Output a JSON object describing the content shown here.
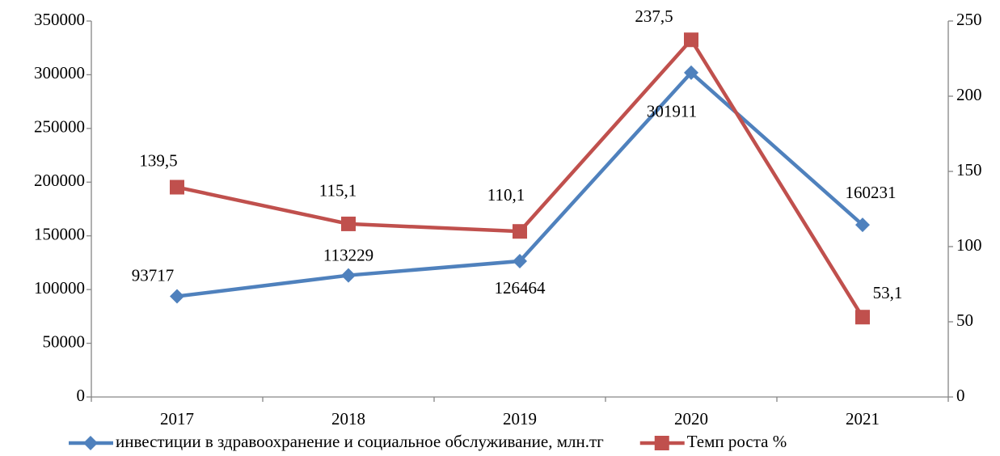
{
  "chart_data": {
    "type": "line",
    "categories": [
      "2017",
      "2018",
      "2019",
      "2020",
      "2021"
    ],
    "series": [
      {
        "name": "инвестиции в здравоохранение и социальное обслуживание, млн.тг",
        "color": "#4f81bd",
        "marker": "diamond",
        "values": [
          93717,
          113229,
          126464,
          301911,
          160231
        ]
      },
      {
        "name": "Темп роста %",
        "color": "#c0504d",
        "marker": "square",
        "axis": "y2",
        "values": [
          139.5,
          115.1,
          110.1,
          237.5,
          53.1
        ],
        "value_labels": [
          "139,5",
          "115,1",
          "110,1",
          "237,5",
          "53,1"
        ]
      }
    ],
    "ylim": [
      0,
      350000
    ],
    "yticks": [
      0,
      50000,
      100000,
      150000,
      200000,
      250000,
      300000,
      350000
    ],
    "y2lim": [
      0,
      250
    ],
    "y2ticks": [
      0,
      50,
      100,
      150,
      200,
      250
    ],
    "legend": "bottom"
  }
}
